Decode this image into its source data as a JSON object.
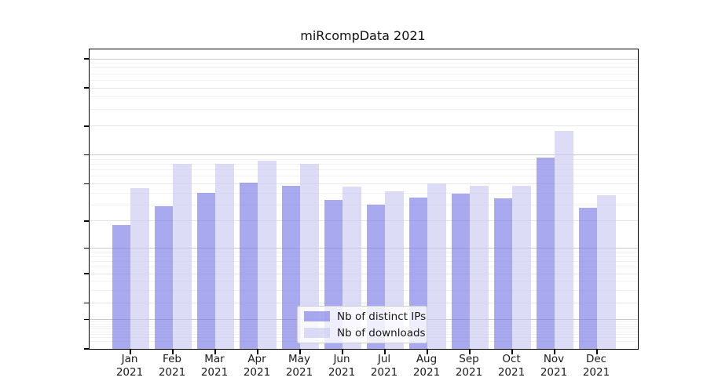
{
  "chart_data": {
    "type": "bar",
    "title": "miRcompData 2021",
    "scale": "log1p",
    "categories": [
      "Jan",
      "Feb",
      "Mar",
      "Apr",
      "May",
      "Jun",
      "Jul",
      "Aug",
      "Sep",
      "Oct",
      "Nov",
      "Dec"
    ],
    "year_label": "2021",
    "series": [
      {
        "name": "Nb of distinct IPs",
        "color": "rgba(123,123,232,0.65)",
        "values": [
          18,
          29,
          40,
          51,
          48,
          34,
          30,
          36,
          39,
          35,
          95,
          28
        ]
      },
      {
        "name": "Nb of downloads",
        "color": "rgba(201,201,243,0.65)",
        "values": [
          45,
          81,
          81,
          88,
          81,
          47,
          42,
          50,
          48,
          48,
          180,
          38
        ]
      }
    ],
    "xlabel": "",
    "ylabel": "",
    "y_ticks": [
      0,
      1,
      2,
      5,
      10,
      20,
      50,
      100,
      200,
      500,
      1000
    ],
    "ylim": [
      0,
      1100
    ],
    "grid": "horizontal, major + log minors",
    "legend_position": "lower center",
    "colors": {
      "grid_decade": "#c9c9c9",
      "grid_major": "#e5e5e5",
      "grid_minor": "#f1f1f1",
      "axis": "#000000",
      "text": "#1a1a1a"
    }
  }
}
